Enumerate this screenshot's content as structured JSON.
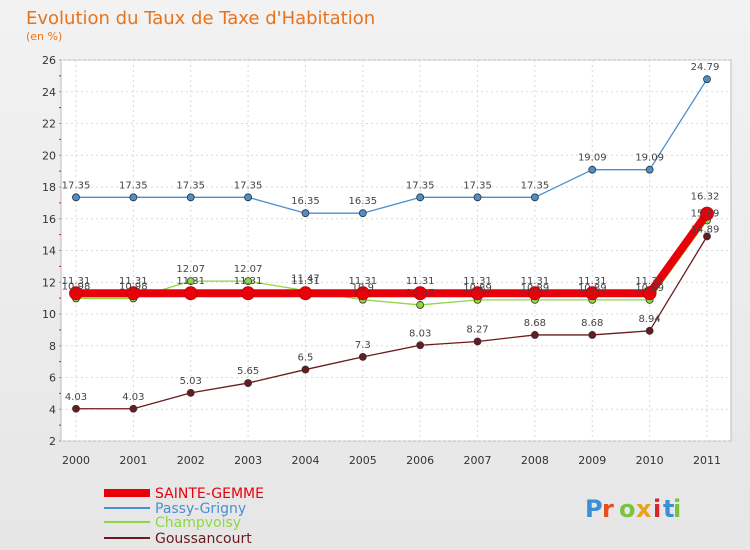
{
  "chart_data": {
    "type": "line",
    "title": "Evolution du Taux de Taxe d'Habitation",
    "subtitle": "(en %)",
    "xlabel": "",
    "ylabel": "",
    "x": [
      "2000",
      "2001",
      "2002",
      "2003",
      "2004",
      "2005",
      "2006",
      "2007",
      "2008",
      "2009",
      "2010",
      "2011"
    ],
    "ylim": [
      2,
      26
    ],
    "yticks": [
      "2",
      "4",
      "6",
      "8",
      "10",
      "12",
      "14",
      "16",
      "18",
      "20",
      "22",
      "24",
      "26"
    ],
    "grid": true,
    "legend_position": "bottom-left",
    "series": [
      {
        "name": "SAINTE-GEMME",
        "color": "#e8000b",
        "values": [
          11.31,
          11.31,
          11.31,
          11.31,
          11.31,
          11.31,
          11.31,
          11.31,
          11.31,
          11.31,
          11.31,
          16.32
        ],
        "labels": [
          "11.31",
          "11.31",
          "11.31",
          "11.31",
          "11.31",
          "11.31",
          "11.31",
          "11.31",
          "11.31",
          "11.31",
          "11.31",
          "16.32"
        ]
      },
      {
        "name": "Passy-Grigny",
        "color": "#4a8fcf",
        "values": [
          17.35,
          17.35,
          17.35,
          17.35,
          16.35,
          16.35,
          17.35,
          17.35,
          17.35,
          19.09,
          19.09,
          24.79
        ],
        "labels": [
          "17.35",
          "17.35",
          "17.35",
          "17.35",
          "16.35",
          "16.35",
          "17.35",
          "17.35",
          "17.35",
          "19.09",
          "19.09",
          "24.79"
        ]
      },
      {
        "name": "Champvoisy",
        "color": "#8fd642",
        "values": [
          10.98,
          10.98,
          12.07,
          12.07,
          11.47,
          10.9,
          10.57,
          10.89,
          10.89,
          10.89,
          10.89,
          15.89
        ],
        "labels": [
          "10.98",
          "10.98",
          "12.07",
          "12.07",
          "11.47",
          "10.9",
          "10.57",
          "10.89",
          "10.89",
          "10.89",
          "10.89",
          "15.89"
        ]
      },
      {
        "name": "Goussancourt",
        "color": "#6b1a1f",
        "values": [
          4.03,
          4.03,
          5.03,
          5.65,
          6.5,
          7.3,
          8.03,
          8.27,
          8.68,
          8.68,
          8.94,
          14.89
        ],
        "labels": [
          "4.03",
          "4.03",
          "5.03",
          "5.65",
          "6.5",
          "7.3",
          "8.03",
          "8.27",
          "8.68",
          "8.68",
          "8.94",
          "14.89"
        ]
      }
    ]
  },
  "watermark": "Proxiti"
}
